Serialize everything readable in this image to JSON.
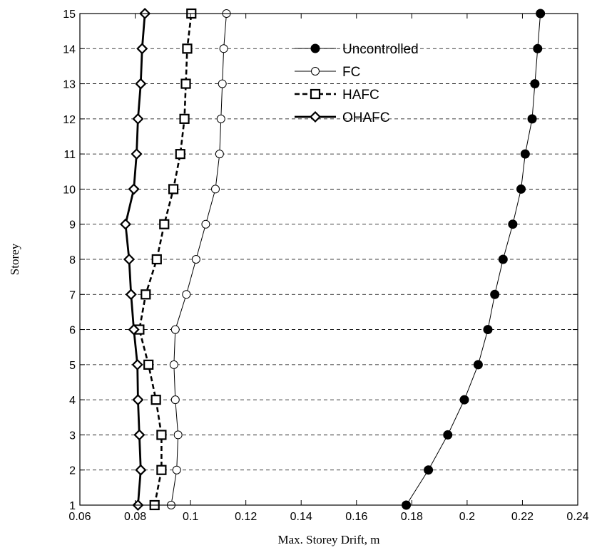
{
  "chart_data": {
    "type": "line",
    "title": "",
    "xlabel": "Max. Storey Drift, m",
    "ylabel": "Storey",
    "xlim": [
      0.06,
      0.24
    ],
    "ylim": [
      1,
      15
    ],
    "xticks": [
      0.06,
      0.08,
      0.1,
      0.12,
      0.14,
      0.16,
      0.18,
      0.2,
      0.22,
      0.24
    ],
    "xtick_labels": [
      "0.06",
      "0.08",
      "0.1",
      "0.12",
      "0.14",
      "0.16",
      "0.18",
      "0.2",
      "0.22",
      "0.24"
    ],
    "yticks": [
      1,
      2,
      3,
      4,
      5,
      6,
      7,
      8,
      9,
      10,
      11,
      12,
      13,
      14,
      15
    ],
    "ytick_labels": [
      "1",
      "2",
      "3",
      "4",
      "5",
      "6",
      "7",
      "8",
      "9",
      "10",
      "11",
      "12",
      "13",
      "14",
      "15"
    ],
    "grid": "horizontal dashed",
    "legend_position": "top-right",
    "series": [
      {
        "name": "Uncontrolled",
        "marker": "filled-circle",
        "line": "thin-solid",
        "color": "#000000",
        "y": [
          1,
          2,
          3,
          4,
          5,
          6,
          7,
          8,
          9,
          10,
          11,
          12,
          13,
          14,
          15
        ],
        "x": [
          0.178,
          0.186,
          0.193,
          0.199,
          0.204,
          0.2075,
          0.21,
          0.213,
          0.2165,
          0.2195,
          0.221,
          0.2235,
          0.2245,
          0.2255,
          0.2265
        ]
      },
      {
        "name": "FC",
        "marker": "open-circle",
        "line": "thin-solid",
        "color": "#000000",
        "y": [
          1,
          2,
          3,
          4,
          5,
          6,
          7,
          8,
          9,
          10,
          11,
          12,
          13,
          14,
          15
        ],
        "x": [
          0.093,
          0.095,
          0.0955,
          0.0945,
          0.094,
          0.0945,
          0.0985,
          0.102,
          0.1055,
          0.109,
          0.1105,
          0.111,
          0.1115,
          0.112,
          0.113
        ]
      },
      {
        "name": "HAFC",
        "marker": "open-square",
        "line": "thick-dashed",
        "color": "#000000",
        "y": [
          1,
          2,
          3,
          4,
          5,
          6,
          7,
          8,
          9,
          10,
          11,
          12,
          13,
          14,
          15
        ],
        "x": [
          0.087,
          0.0895,
          0.0895,
          0.0875,
          0.0848,
          0.0815,
          0.0838,
          0.0878,
          0.0905,
          0.0938,
          0.0963,
          0.0978,
          0.0983,
          0.0988,
          0.1003
        ]
      },
      {
        "name": "OHAFC",
        "marker": "open-diamond",
        "line": "thick-solid",
        "color": "#000000",
        "y": [
          1,
          2,
          3,
          4,
          5,
          6,
          7,
          8,
          9,
          10,
          11,
          12,
          13,
          14,
          15
        ],
        "x": [
          0.081,
          0.082,
          0.0815,
          0.081,
          0.0808,
          0.0795,
          0.0785,
          0.0778,
          0.0765,
          0.0795,
          0.0805,
          0.081,
          0.082,
          0.0825,
          0.0835
        ]
      }
    ]
  }
}
